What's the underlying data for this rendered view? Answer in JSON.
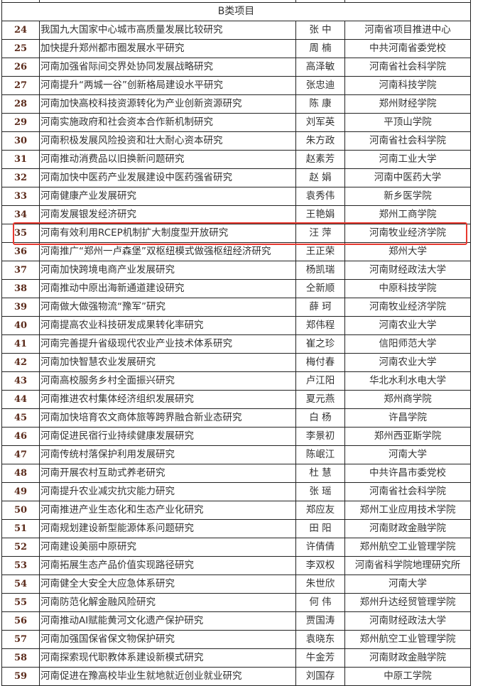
{
  "section_title": "B类项目",
  "highlight_color": "#e8382f",
  "highlighted_row_no": "35",
  "rows": [
    {
      "no": "24",
      "title": "我国九大国家中心城市高质量发展比较研究",
      "person": "张 中",
      "org": "河南省项目推进中心"
    },
    {
      "no": "25",
      "title": "加快提升郑州都市圈发展水平研究",
      "person": "周 楠",
      "org": "中共河南省委党校"
    },
    {
      "no": "26",
      "title": "河南加强省际间交界处协同发展战略研究",
      "person": "高泽敏",
      "org": "河南省社会科学院"
    },
    {
      "no": "27",
      "title": "河南提升“两城一谷”创新格局建设水平研究",
      "person": "张忠迪",
      "org": "河南科技学院"
    },
    {
      "no": "28",
      "title": "河南加快高校科技资源转化为产业创新资源研究",
      "person": "陈 康",
      "org": "郑州财经学院"
    },
    {
      "no": "29",
      "title": "河南实施政府和社会资本合作新机制研究",
      "person": "刘军英",
      "org": "平顶山学院"
    },
    {
      "no": "30",
      "title": "河南积极发展风险投资和壮大耐心资本研究",
      "person": "朱方政",
      "org": "河南省社会科学院"
    },
    {
      "no": "31",
      "title": "河南推动消费品以旧换新问题研究",
      "person": "赵素芳",
      "org": "河南工业大学"
    },
    {
      "no": "32",
      "title": "河南加快中医药产业发展建设中医药强省研究",
      "person": "赵 娟",
      "org": "河南中医药大学"
    },
    {
      "no": "33",
      "title": "河南健康产业发展研究",
      "person": "袁秀伟",
      "org": "新乡医学院"
    },
    {
      "no": "34",
      "title": "河南发展银发经济研究",
      "person": "王艳娟",
      "org": "郑州工商学院"
    },
    {
      "no": "35",
      "title": "河南有效利用RCEP机制扩大制度型开放研究",
      "person": "汪 萍",
      "org": "河南牧业经济学院"
    },
    {
      "no": "36",
      "title": "河南推广“郑州一卢森堡”双枢纽模式做强枢纽经济研究",
      "person": "王正荣",
      "org": "郑州大学"
    },
    {
      "no": "37",
      "title": "河南加快跨境电商产业发展研究",
      "person": "杨凯瑞",
      "org": "河南财经政法大学"
    },
    {
      "no": "38",
      "title": "河南推动中原出海新通道建设研究",
      "person": "仝新顺",
      "org": "中原科技学院"
    },
    {
      "no": "39",
      "title": "河南做大做强物流“豫军”研究",
      "person": "薛 珂",
      "org": "河南牧业经济学院"
    },
    {
      "no": "40",
      "title": "河南提高农业科技研发成果转化率研究",
      "person": "郑伟程",
      "org": "河南农业大学"
    },
    {
      "no": "41",
      "title": "河南完善提升省级现代农业产业技术体系研究",
      "person": "崔之珍",
      "org": "信阳师范大学"
    },
    {
      "no": "42",
      "title": "河南加快智慧农业发展研究",
      "person": "梅付春",
      "org": "河南农业大学"
    },
    {
      "no": "43",
      "title": "河南高校服务乡村全面振兴研究",
      "person": "卢江阳",
      "org": "华北水利水电大学"
    },
    {
      "no": "44",
      "title": "河南推进农村集体经济组织发展研究",
      "person": "夏元燕",
      "org": "郑州商学院"
    },
    {
      "no": "45",
      "title": "河南加快培育农文商体旅等跨界融合新业态研究",
      "person": "白 杨",
      "org": "许昌学院"
    },
    {
      "no": "46",
      "title": "河南促进民宿行业持续健康发展研究",
      "person": "李景初",
      "org": "郑州西亚斯学院"
    },
    {
      "no": "47",
      "title": "河南传统村落保护利用发展研究",
      "person": "陈岷江",
      "org": "河南大学"
    },
    {
      "no": "48",
      "title": "河南开展农村互助式养老研究",
      "person": "杜 慧",
      "org": "中共许昌市委党校"
    },
    {
      "no": "49",
      "title": "河南提升农业减灾抗灾能力研究",
      "person": "张 瑶",
      "org": "河南省社会科学院"
    },
    {
      "no": "50",
      "title": "河南推进产业生态化和生态产业化研究",
      "person": "郑应友",
      "org": "郑州工业应用技术学院"
    },
    {
      "no": "51",
      "title": "河南规划建设新型能源体系问题研究",
      "person": "田 阳",
      "org": "河南财政金融学院"
    },
    {
      "no": "52",
      "title": "河南建设美丽中原研究",
      "person": "许倩倩",
      "org": "郑州航空工业管理学院"
    },
    {
      "no": "53",
      "title": "河南拓展生态产品价值实现路径研究",
      "person": "李双权",
      "org": "河南省科学院地理研究所"
    },
    {
      "no": "54",
      "title": "河南健全大安全大应急体系研究",
      "person": "朱世欣",
      "org": "河南大学"
    },
    {
      "no": "55",
      "title": "河南防范化解金融风险研究",
      "person": "何 伟",
      "org": "郑州升达经贸管理学院"
    },
    {
      "no": "56",
      "title": "河南推动AI赋能黄河文化遗产保护研究",
      "person": "贾国涛",
      "org": "河南财经政法大学"
    },
    {
      "no": "57",
      "title": "河南加强国保省保文物保护研究",
      "person": "袁晓东",
      "org": "郑州航空工业管理学院"
    },
    {
      "no": "58",
      "title": "河南探索现代职教体系建设新模式研究",
      "person": "牛金芳",
      "org": "河南财政金融学院"
    },
    {
      "no": "59",
      "title": "河南促进在豫高校毕业生就地就近创业就业研究",
      "person": "刘国存",
      "org": "中原工学院"
    }
  ]
}
